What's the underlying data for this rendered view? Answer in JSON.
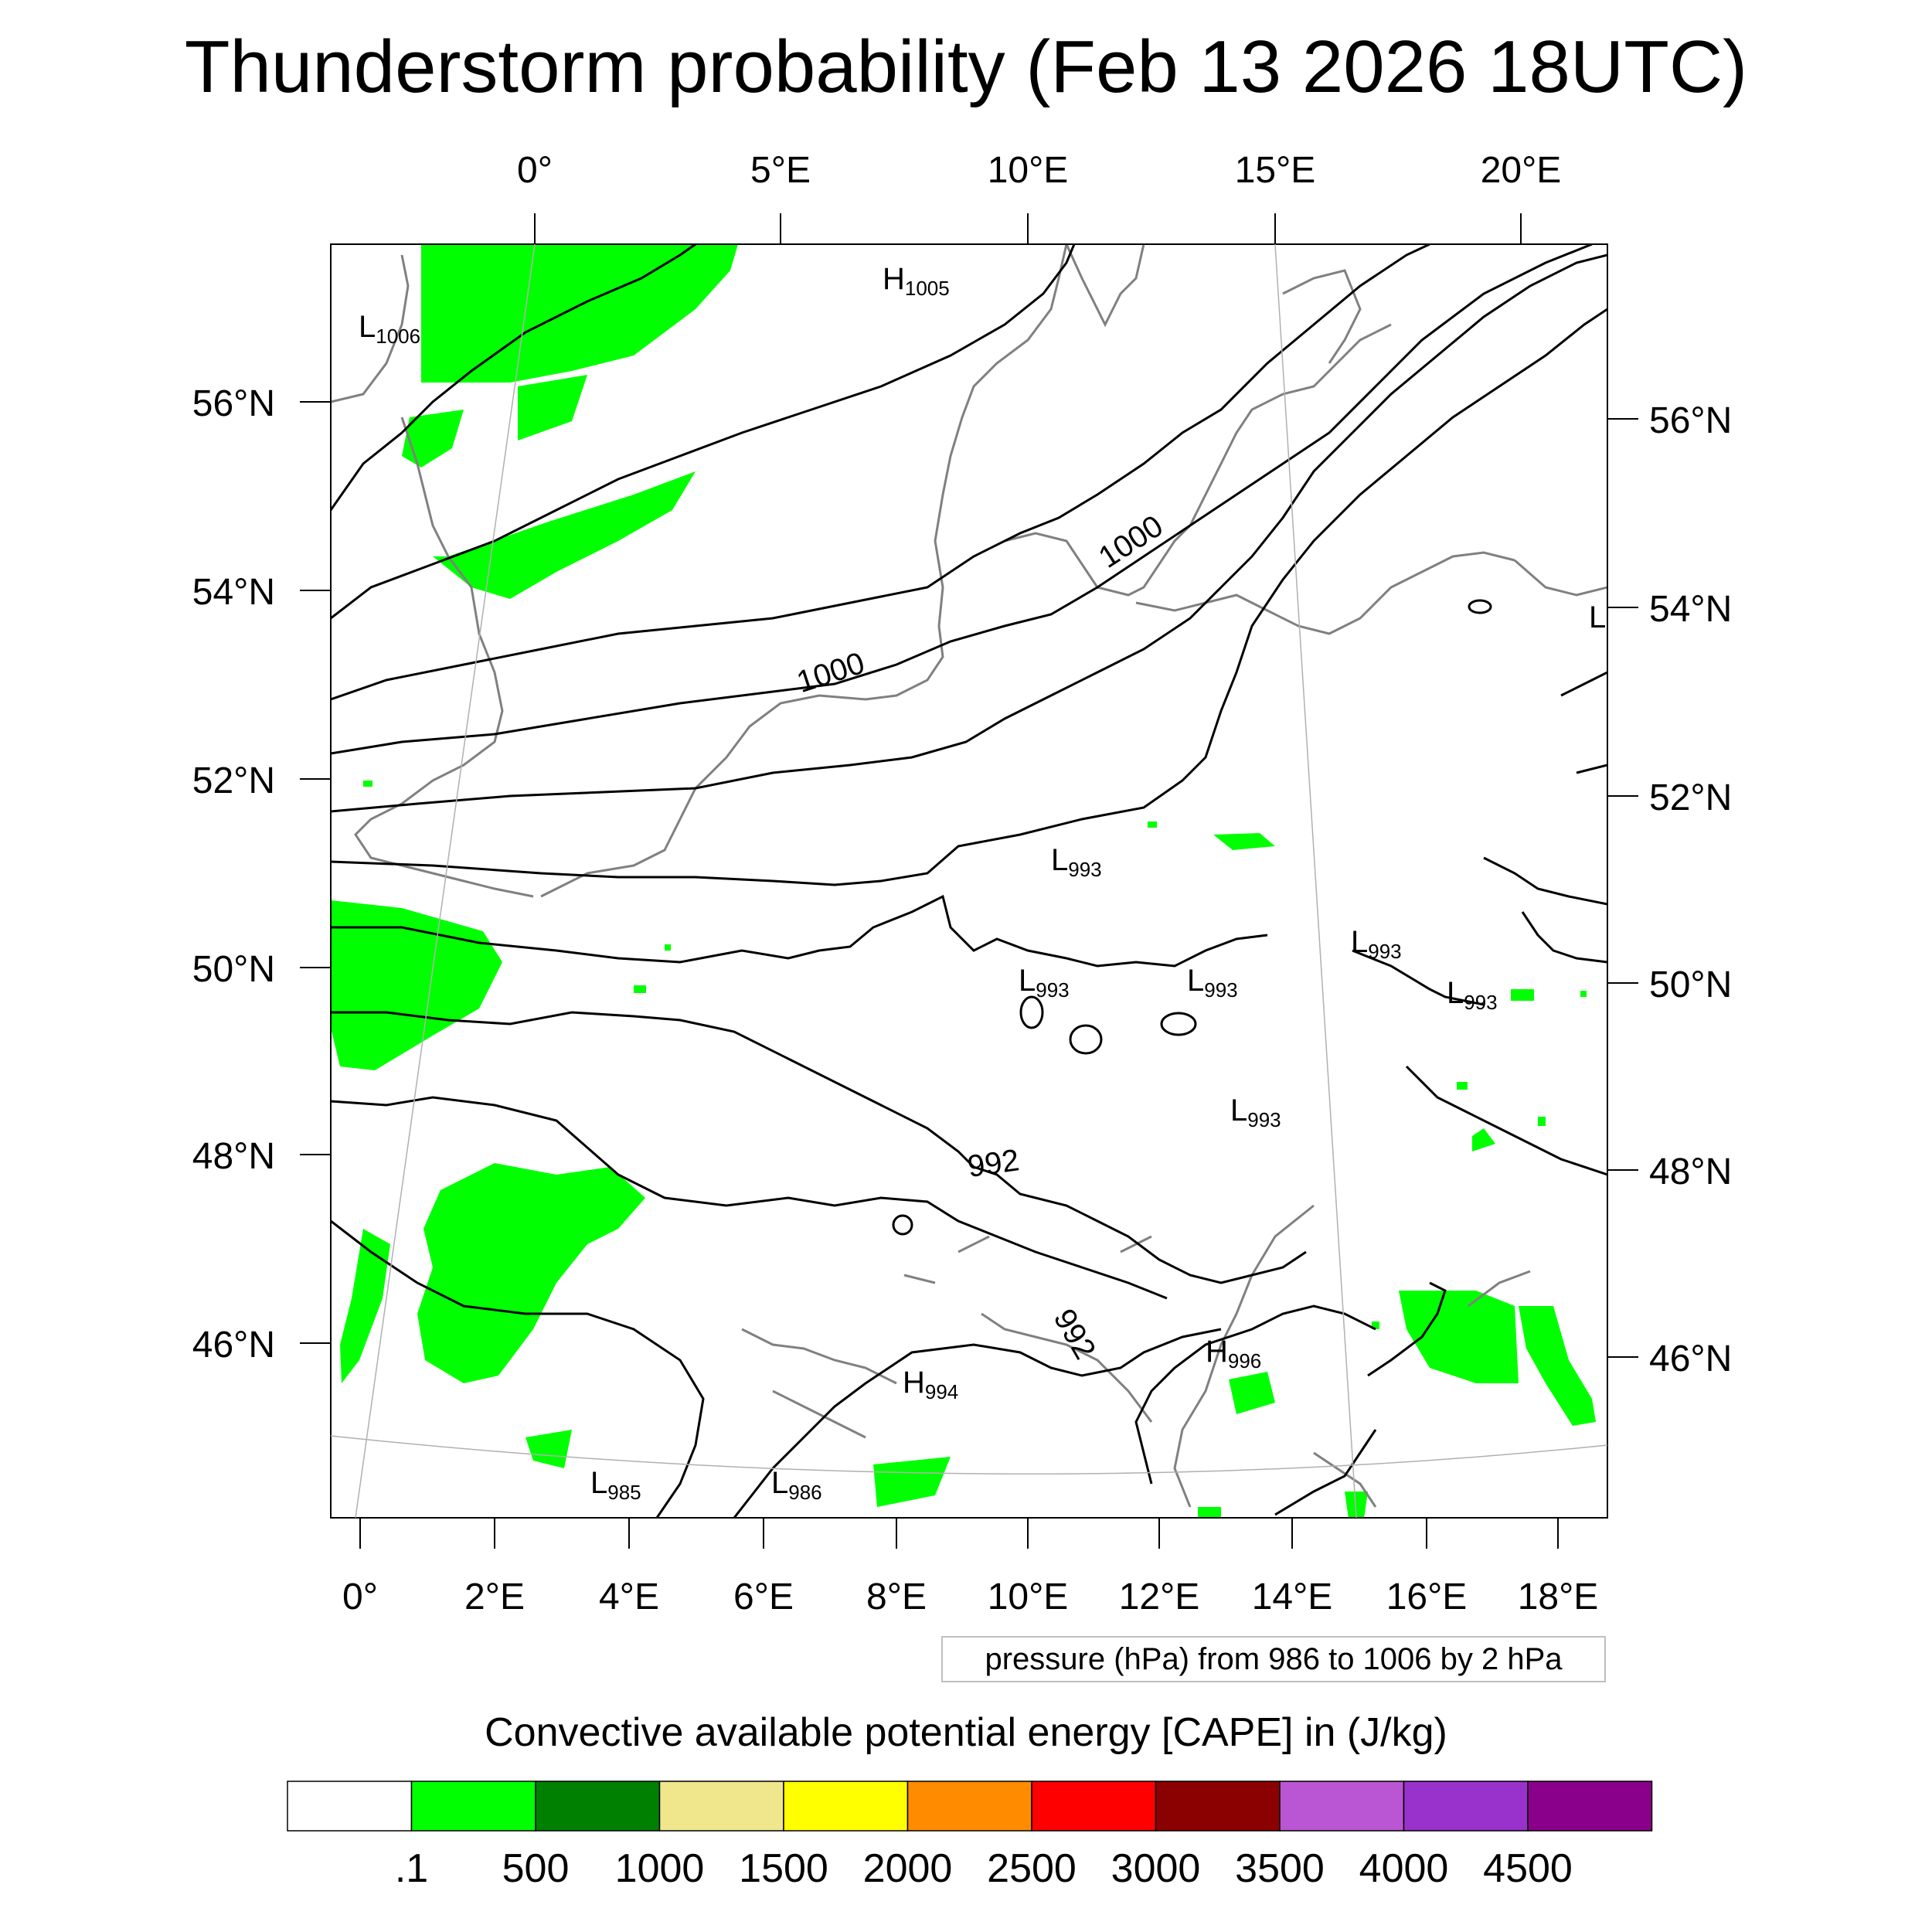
{
  "title": "Thunderstorm probability (Feb 13 2026 18UTC)",
  "map": {
    "top_lon_labels": [
      "0°",
      "5°E",
      "10°E",
      "15°E",
      "20°E"
    ],
    "bottom_lon_labels": [
      "0°",
      "2°E",
      "4°E",
      "6°E",
      "8°E",
      "10°E",
      "12°E",
      "14°E",
      "16°E",
      "18°E"
    ],
    "left_lat_labels": [
      "56°N",
      "54°N",
      "52°N",
      "50°N",
      "48°N",
      "46°N"
    ],
    "right_lat_labels": [
      "56°N",
      "54°N",
      "52°N",
      "50°N",
      "48°N",
      "46°N"
    ],
    "isobar_labels": [
      "1000",
      "1000",
      "992",
      "992"
    ],
    "pressure_centers": [
      {
        "type": "L",
        "value": "1006"
      },
      {
        "type": "H",
        "value": "1005"
      },
      {
        "type": "L",
        "value": "993"
      },
      {
        "type": "L",
        "value": "993"
      },
      {
        "type": "L",
        "value": "993"
      },
      {
        "type": "L",
        "value": "993"
      },
      {
        "type": "L",
        "value": "993"
      },
      {
        "type": "L",
        "value": "993"
      },
      {
        "type": "H",
        "value": "994"
      },
      {
        "type": "H",
        "value": "996"
      },
      {
        "type": "L",
        "value": "985"
      },
      {
        "type": "L",
        "value": "986"
      },
      {
        "type": "L",
        "value": ""
      }
    ],
    "colors": {
      "cape_low": "#00ff00",
      "isobar": "#000000",
      "coastline": "#808080",
      "grid": "#b0b0b0"
    }
  },
  "legend_note": "pressure (hPa) from 986 to 1006 by 2 hPa",
  "colorbar": {
    "title": "Convective available potential energy [CAPE] in (J/kg)",
    "colors": [
      "#ffffff",
      "#00ff00",
      "#008000",
      "#f0e68c",
      "#ffff00",
      "#ff8c00",
      "#ff0000",
      "#8b0000",
      "#ba55d3",
      "#9932cc",
      "#8b008b"
    ],
    "labels": [
      ".1",
      "500",
      "1000",
      "1500",
      "2000",
      "2500",
      "3000",
      "3500",
      "4000",
      "4500"
    ]
  }
}
